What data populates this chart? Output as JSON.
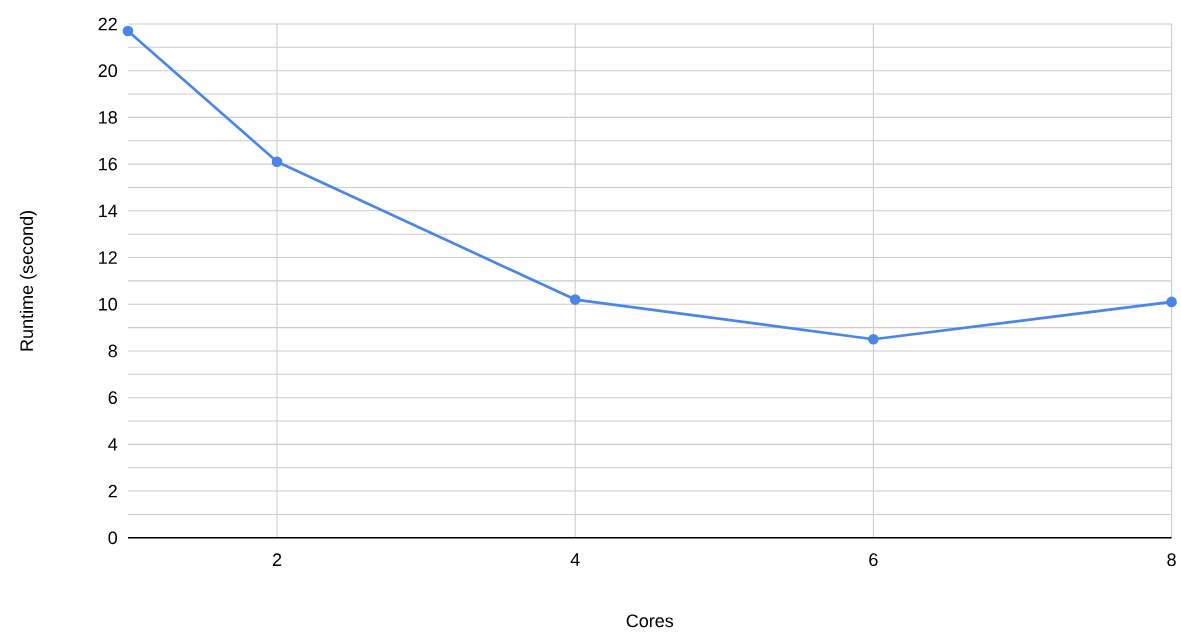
{
  "chart_data": {
    "type": "line",
    "xlabel": "Cores",
    "ylabel": "Runtime (second)",
    "x": [
      1,
      2,
      4,
      6,
      8
    ],
    "series": [
      {
        "color": "#4a86e8",
        "values": [
          21.7,
          16.1,
          10.2,
          8.5,
          10.1
        ]
      }
    ],
    "xlim": [
      1,
      8
    ],
    "xticks": [
      2,
      4,
      6,
      8
    ],
    "ylim": [
      0,
      22
    ],
    "yticks": [
      0,
      {
        "value": 1,
        "label": null
      },
      2,
      {
        "value": 3,
        "label": null
      },
      4,
      {
        "value": 5,
        "label": null
      },
      6,
      {
        "value": 7,
        "label": null
      },
      8,
      {
        "value": 9,
        "label": null
      },
      10,
      {
        "value": 11,
        "label": null
      },
      12,
      {
        "value": 13,
        "label": null
      },
      14,
      {
        "value": 15,
        "label": null
      },
      16,
      {
        "value": 17,
        "label": null
      },
      18,
      {
        "value": 19,
        "label": null
      },
      20,
      {
        "value": 21,
        "label": null
      },
      22
    ],
    "grid": true,
    "marker": "circle",
    "line_style": "solid"
  }
}
